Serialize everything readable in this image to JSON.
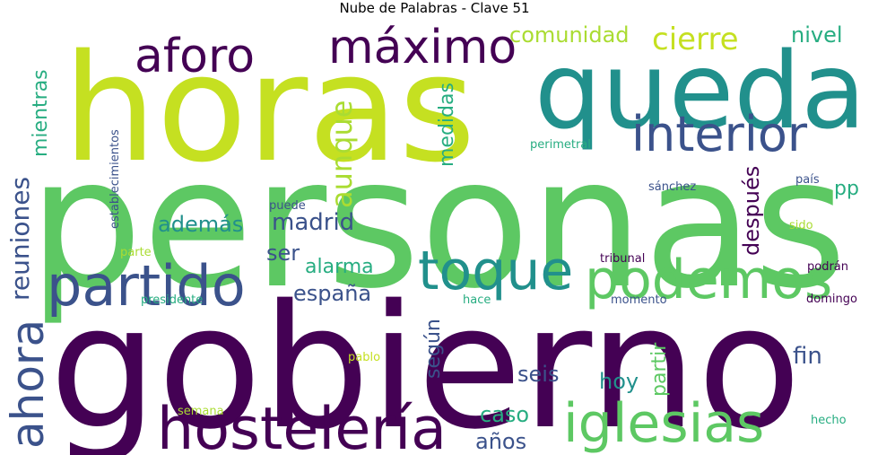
{
  "chart_data": {
    "type": "wordcloud",
    "title": "Nube de Palabras - Clave 51",
    "colormap": [
      "#440154",
      "#3b528b",
      "#21908c",
      "#27ad81",
      "#5dc863",
      "#aadc32",
      "#c5e021"
    ],
    "words": [
      {
        "text": "personas",
        "weight": 100,
        "color": "#5dc863",
        "orientation": "horizontal"
      },
      {
        "text": "gobierno",
        "weight": 95,
        "color": "#440154",
        "orientation": "horizontal"
      },
      {
        "text": "horas",
        "weight": 80,
        "color": "#c5e021",
        "orientation": "horizontal"
      },
      {
        "text": "queda",
        "weight": 68,
        "color": "#21908c",
        "orientation": "horizontal"
      },
      {
        "text": "hostelería",
        "weight": 38,
        "color": "#440154",
        "orientation": "horizontal"
      },
      {
        "text": "partido",
        "weight": 38,
        "color": "#3b528b",
        "orientation": "horizontal"
      },
      {
        "text": "podemos",
        "weight": 36,
        "color": "#5dc863",
        "orientation": "horizontal"
      },
      {
        "text": "iglesias",
        "weight": 36,
        "color": "#5dc863",
        "orientation": "horizontal"
      },
      {
        "text": "toque",
        "weight": 36,
        "color": "#21908c",
        "orientation": "horizontal"
      },
      {
        "text": "ahora",
        "weight": 34,
        "color": "#3b528b",
        "orientation": "vertical"
      },
      {
        "text": "interior",
        "weight": 34,
        "color": "#3b528b",
        "orientation": "horizontal"
      },
      {
        "text": "aforo",
        "weight": 32,
        "color": "#440154",
        "orientation": "horizontal"
      },
      {
        "text": "máximo",
        "weight": 32,
        "color": "#440154",
        "orientation": "horizontal"
      },
      {
        "text": "aunque",
        "weight": 22,
        "color": "#aadc32",
        "orientation": "vertical"
      },
      {
        "text": "cierre",
        "weight": 22,
        "color": "#c5e021",
        "orientation": "horizontal"
      },
      {
        "text": "reuniones",
        "weight": 20,
        "color": "#3b528b",
        "orientation": "vertical"
      },
      {
        "text": "madrid",
        "weight": 20,
        "color": "#3b528b",
        "orientation": "horizontal"
      },
      {
        "text": "además",
        "weight": 18,
        "color": "#21908c",
        "orientation": "horizontal"
      },
      {
        "text": "ser",
        "weight": 18,
        "color": "#3b528b",
        "orientation": "horizontal"
      },
      {
        "text": "alarma",
        "weight": 18,
        "color": "#27ad81",
        "orientation": "horizontal"
      },
      {
        "text": "españa",
        "weight": 18,
        "color": "#3b528b",
        "orientation": "horizontal"
      },
      {
        "text": "después",
        "weight": 18,
        "color": "#440154",
        "orientation": "vertical"
      },
      {
        "text": "comunidad",
        "weight": 18,
        "color": "#aadc32",
        "orientation": "horizontal"
      },
      {
        "text": "mientras",
        "weight": 18,
        "color": "#27ad81",
        "orientation": "vertical"
      },
      {
        "text": "medidas",
        "weight": 18,
        "color": "#27ad81",
        "orientation": "vertical"
      },
      {
        "text": "nivel",
        "weight": 17,
        "color": "#27ad81",
        "orientation": "horizontal"
      },
      {
        "text": "pp",
        "weight": 18,
        "color": "#27ad81",
        "orientation": "horizontal"
      },
      {
        "text": "según",
        "weight": 17,
        "color": "#3b528b",
        "orientation": "vertical"
      },
      {
        "text": "partir",
        "weight": 17,
        "color": "#5dc863",
        "orientation": "vertical"
      },
      {
        "text": "seis",
        "weight": 17,
        "color": "#3b528b",
        "orientation": "horizontal"
      },
      {
        "text": "hoy",
        "weight": 17,
        "color": "#21908c",
        "orientation": "horizontal"
      },
      {
        "text": "fin",
        "weight": 17,
        "color": "#3b528b",
        "orientation": "horizontal"
      },
      {
        "text": "caso",
        "weight": 17,
        "color": "#27ad81",
        "orientation": "horizontal"
      },
      {
        "text": "años",
        "weight": 16,
        "color": "#3b528b",
        "orientation": "horizontal"
      },
      {
        "text": "establecimientos",
        "weight": 10,
        "color": "#3b528b",
        "orientation": "vertical"
      },
      {
        "text": "perimetral",
        "weight": 10,
        "color": "#27ad81",
        "orientation": "horizontal"
      },
      {
        "text": "sánchez",
        "weight": 10,
        "color": "#3b528b",
        "orientation": "horizontal"
      },
      {
        "text": "país",
        "weight": 10,
        "color": "#3b528b",
        "orientation": "horizontal"
      },
      {
        "text": "puede",
        "weight": 10,
        "color": "#3b528b",
        "orientation": "horizontal"
      },
      {
        "text": "sido",
        "weight": 10,
        "color": "#aadc32",
        "orientation": "horizontal"
      },
      {
        "text": "tribunal",
        "weight": 10,
        "color": "#440154",
        "orientation": "horizontal"
      },
      {
        "text": "parte",
        "weight": 10,
        "color": "#aadc32",
        "orientation": "horizontal"
      },
      {
        "text": "podrán",
        "weight": 10,
        "color": "#440154",
        "orientation": "horizontal"
      },
      {
        "text": "presidente",
        "weight": 10,
        "color": "#27ad81",
        "orientation": "horizontal"
      },
      {
        "text": "hace",
        "weight": 10,
        "color": "#27ad81",
        "orientation": "horizontal"
      },
      {
        "text": "momento",
        "weight": 10,
        "color": "#3b528b",
        "orientation": "horizontal"
      },
      {
        "text": "domingo",
        "weight": 10,
        "color": "#440154",
        "orientation": "horizontal"
      },
      {
        "text": "pablo",
        "weight": 10,
        "color": "#c5e021",
        "orientation": "horizontal"
      },
      {
        "text": "semana",
        "weight": 10,
        "color": "#aadc32",
        "orientation": "horizontal"
      },
      {
        "text": "hecho",
        "weight": 10,
        "color": "#27ad81",
        "orientation": "horizontal"
      }
    ]
  }
}
